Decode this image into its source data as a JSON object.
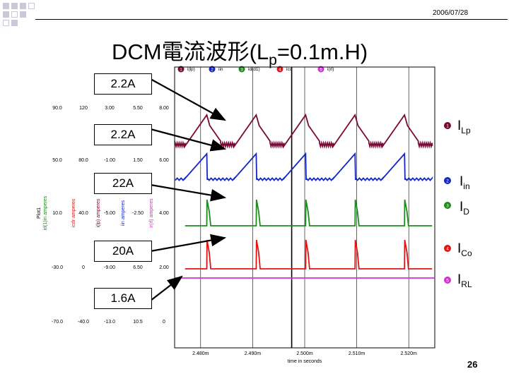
{
  "date": "2006/07/28",
  "title": {
    "main": "DCM電流波形(L",
    "sub": "p",
    "rest": "=0.1m.H)"
  },
  "page_number": "26",
  "colors": {
    "ILp": "#7a0a35",
    "Iin": "#1428c8",
    "ID": "#1c8c1c",
    "ICo": "#e01414",
    "IRL": "#d230d2",
    "decor": "#c9c9d6"
  },
  "callouts": [
    "2.2A",
    "2.2A",
    "22A",
    "20A",
    "1.6A"
  ],
  "signal_labels": [
    {
      "main": "I",
      "sub": "Lp"
    },
    {
      "main": "I",
      "sub": "in"
    },
    {
      "main": "I",
      "sub": "D"
    },
    {
      "main": "I",
      "sub": "Co"
    },
    {
      "main": "I",
      "sub": "RL"
    }
  ],
  "legend": [
    {
      "num": "1",
      "label": "i(lp)"
    },
    {
      "num": "2",
      "label": "iin"
    },
    {
      "num": "3",
      "label": "id(d1)"
    },
    {
      "num": "4",
      "label": "ico"
    },
    {
      "num": "5",
      "label": "i(rl)"
    }
  ],
  "axis_titles": [
    "Plot1",
    "id(1)in amperes",
    "icdr amperes",
    "i(lp) amperes",
    "iin amperes",
    "ir(rl) amperes"
  ],
  "scale_rows": [
    [
      "90.0",
      "120",
      "3.00",
      "5.50",
      "8.00"
    ],
    [
      "50.0",
      "80.0",
      "-1.00",
      "1.50",
      "6.00"
    ],
    [
      "10.0",
      "40.0",
      "-5.00",
      "-2.50",
      "4.00"
    ],
    [
      "-30.0",
      "0",
      "-9.00",
      "6.50",
      "2.00"
    ],
    [
      "-70.0",
      "-40.0",
      "-13.0",
      "10.5",
      "0"
    ]
  ],
  "chart_data": {
    "type": "line",
    "xlabel": "time in seconds",
    "x_ticks": [
      "2.480m",
      "2.490m",
      "2.500m",
      "2.510m",
      "2.520m"
    ],
    "x_tick_values": [
      0.00248,
      0.00249,
      0.0025,
      0.00251,
      0.00252
    ],
    "xlim": [
      0.002475,
      0.002525
    ],
    "cursor_x": 0.0024975,
    "switching_period": 9.5e-06,
    "series": [
      {
        "name": "ILp",
        "peak_amplitude_A": 2.2,
        "waveform": "triangular current ramps with ringing in dead time"
      },
      {
        "name": "Iin",
        "peak_amplitude_A": 2.2,
        "waveform": "linear ramp then sharp drop to zero"
      },
      {
        "name": "ID",
        "peak_amplitude_A": 22,
        "waveform": "spike then quick decay, flat otherwise"
      },
      {
        "name": "ICo",
        "peak_amplitude_A": 20,
        "waveform": "spike then decay to negative plateau"
      },
      {
        "name": "IRL",
        "peak_amplitude_A": 1.6,
        "waveform": "constant DC"
      }
    ]
  }
}
